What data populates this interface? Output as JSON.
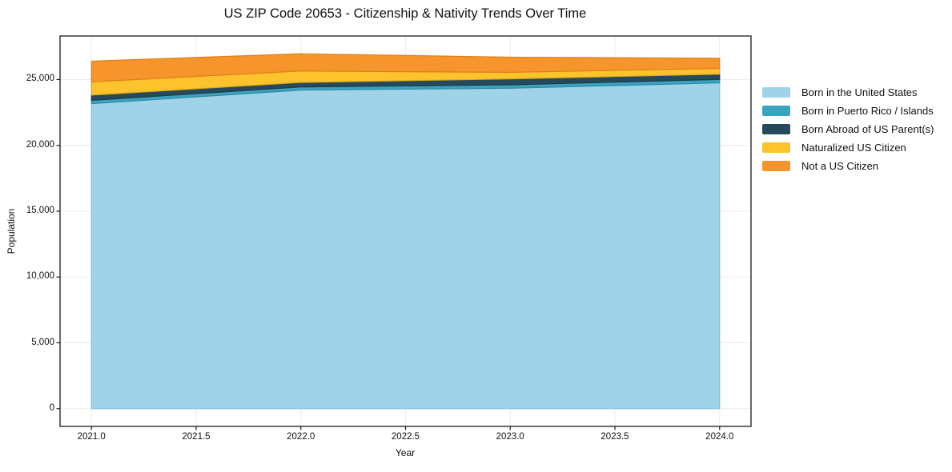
{
  "title": "US ZIP Code 20653 - Citizenship & Nativity Trends Over Time",
  "chart_data": {
    "type": "area",
    "stacked": true,
    "title": "US ZIP Code 20653 - Citizenship & Nativity Trends Over Time",
    "xlabel": "Year",
    "ylabel": "Population",
    "x": [
      2021,
      2022,
      2023,
      2024
    ],
    "series": [
      {
        "name": "Born in the United States",
        "color": "#A1D3E8",
        "edge": "#84BFDB",
        "values": [
          23170,
          24200,
          24340,
          24750
        ]
      },
      {
        "name": "Born in Puerto Rico / Islands",
        "color": "#3AA3C0",
        "edge": "#2E8BA5",
        "values": [
          250,
          240,
          260,
          260
        ]
      },
      {
        "name": "Born Abroad of US Parent(s)",
        "color": "#26495C",
        "edge": "#1C3A4A",
        "values": [
          400,
          340,
          450,
          400
        ]
      },
      {
        "name": "Naturalized US Citizen",
        "color": "#FCC32D",
        "edge": "#DBA61F",
        "values": [
          1010,
          870,
          500,
          440
        ]
      },
      {
        "name": "Not a US Citizen",
        "color": "#F7952D",
        "edge": "#E07E1A",
        "values": [
          1570,
          1310,
          1150,
          770
        ]
      }
    ],
    "totals": [
      26400,
      26960,
      26700,
      26620
    ],
    "x_ticks": [
      2021.0,
      2021.5,
      2022.0,
      2022.5,
      2023.0,
      2023.5,
      2024.0
    ],
    "x_tick_labels": [
      "2021.0",
      "2021.5",
      "2022.0",
      "2022.5",
      "2023.0",
      "2023.5",
      "2024.0"
    ],
    "y_ticks": [
      0,
      5000,
      10000,
      15000,
      20000,
      25000
    ],
    "y_tick_labels": [
      "0",
      "5,000",
      "10,000",
      "15,000",
      "20,000",
      "25,000"
    ],
    "xlim": [
      2020.85,
      2024.15
    ],
    "ylim": [
      -1350,
      28310
    ],
    "grid": true,
    "grid_color": "#ececec",
    "spine_color": "#1a1a1a",
    "background": "#ffffff",
    "legend_position": "right of plot"
  },
  "legend": {
    "items": [
      {
        "label": "Born in the United States"
      },
      {
        "label": "Born in Puerto Rico / Islands"
      },
      {
        "label": "Born Abroad of US Parent(s)"
      },
      {
        "label": "Naturalized US Citizen"
      },
      {
        "label": "Not a US Citizen"
      }
    ]
  }
}
